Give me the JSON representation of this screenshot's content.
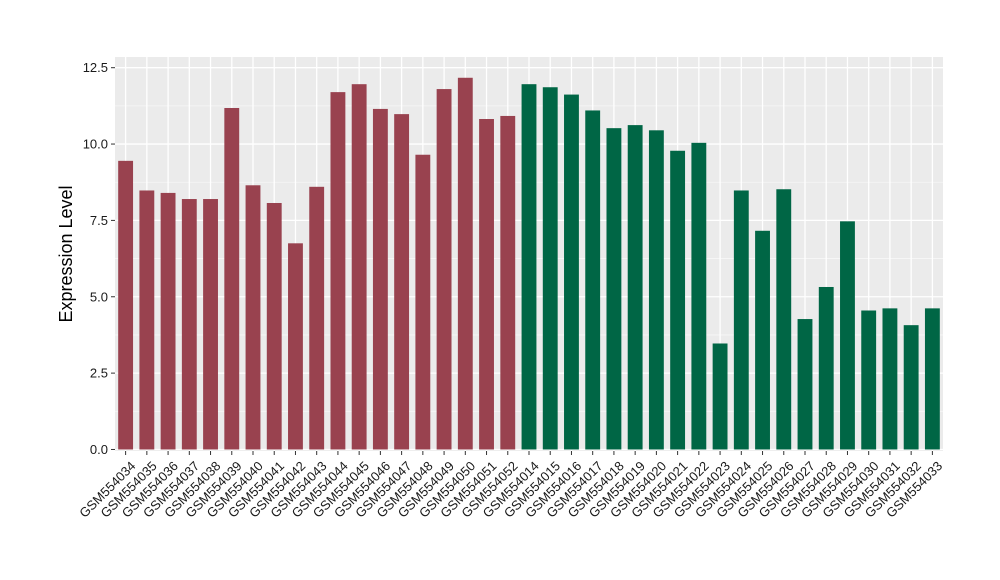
{
  "chart_data": {
    "type": "bar",
    "xlabel": "",
    "ylabel": "Expression Level",
    "ylim": [
      -0.05,
      12.85
    ],
    "yticks": [
      "0.0",
      "2.5",
      "5.0",
      "7.5",
      "10.0",
      "12.5"
    ],
    "ytick_values": [
      0,
      2.5,
      5,
      7.5,
      10,
      12.5
    ],
    "grid": true,
    "panel_background": "#ebebeb",
    "categories": [
      "GSM554034",
      "GSM554035",
      "GSM554036",
      "GSM554037",
      "GSM554038",
      "GSM554039",
      "GSM554040",
      "GSM554041",
      "GSM554042",
      "GSM554043",
      "GSM554044",
      "GSM554045",
      "GSM554046",
      "GSM554047",
      "GSM554048",
      "GSM554049",
      "GSM554050",
      "GSM554051",
      "GSM554052",
      "GSM554014",
      "GSM554015",
      "GSM554016",
      "GSM554017",
      "GSM554018",
      "GSM554019",
      "GSM554020",
      "GSM554021",
      "GSM554022",
      "GSM554023",
      "GSM554024",
      "GSM554025",
      "GSM554026",
      "GSM554027",
      "GSM554028",
      "GSM554029",
      "GSM554030",
      "GSM554031",
      "GSM554032",
      "GSM554033"
    ],
    "values": [
      9.45,
      8.48,
      8.4,
      8.2,
      8.2,
      11.18,
      8.65,
      8.07,
      6.75,
      8.6,
      11.7,
      11.96,
      11.15,
      10.98,
      9.65,
      11.8,
      12.17,
      10.82,
      10.92,
      11.96,
      11.86,
      11.62,
      11.1,
      10.52,
      10.62,
      10.45,
      9.78,
      10.04,
      3.47,
      8.48,
      7.16,
      8.52,
      4.27,
      5.32,
      7.47,
      4.55,
      4.62,
      4.07,
      4.62
    ],
    "bar_colors": [
      "#99424f",
      "#99424f",
      "#99424f",
      "#99424f",
      "#99424f",
      "#99424f",
      "#99424f",
      "#99424f",
      "#99424f",
      "#99424f",
      "#99424f",
      "#99424f",
      "#99424f",
      "#99424f",
      "#99424f",
      "#99424f",
      "#99424f",
      "#99424f",
      "#99424f",
      "#006645",
      "#006645",
      "#006645",
      "#006645",
      "#006645",
      "#006645",
      "#006645",
      "#006645",
      "#006645",
      "#006645",
      "#006645",
      "#006645",
      "#006645",
      "#006645",
      "#006645",
      "#006645",
      "#006645",
      "#006645",
      "#006645",
      "#006645"
    ]
  }
}
